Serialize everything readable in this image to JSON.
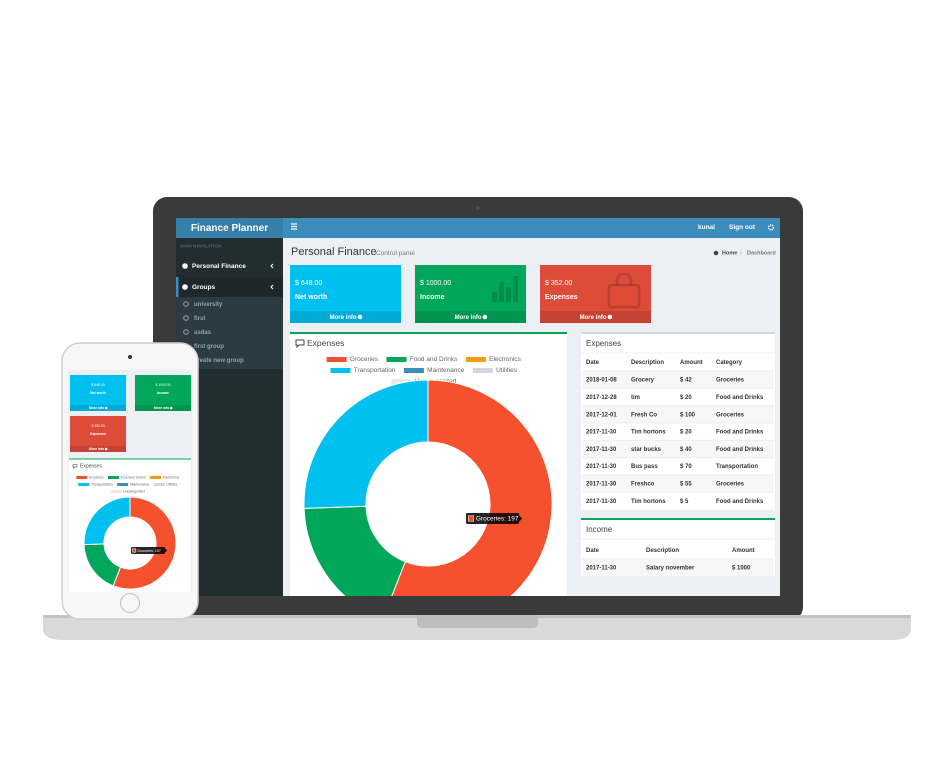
{
  "app": {
    "brand": "Finance Planner",
    "user": "kunal",
    "sign_out": "Sign out"
  },
  "sidebar": {
    "heading": "MAIN NAVIGATION",
    "items": [
      "Personal Finance",
      "Groups"
    ],
    "groups": [
      "university",
      "first",
      "asdas",
      "first group",
      "create new group"
    ]
  },
  "page": {
    "title": "Personal Finance",
    "subtitle": "Control panel",
    "breadcrumb": [
      "Home",
      "Dashboard"
    ]
  },
  "stat_boxes": [
    {
      "value": "$ 648.00",
      "label": "Net worth",
      "link": "More info",
      "color": "#00c0ef"
    },
    {
      "value": "$ 1000.00",
      "label": "Income",
      "link": "More info",
      "color": "#00a65a"
    },
    {
      "value": "$ 352.00",
      "label": "Expenses",
      "link": "More info",
      "color": "#dd4b39"
    }
  ],
  "chart_data": {
    "type": "doughnut",
    "title": "Expenses",
    "categories": [
      "Groceries",
      "Food and Drinks",
      "Electronics",
      "Transportation",
      "Maintenance",
      "Utilities",
      "Uncategorized"
    ],
    "values": [
      197,
      65,
      0,
      90,
      0,
      0,
      0
    ],
    "colors": [
      "#f5512f",
      "#00a65a",
      "#f39c12",
      "#00c0ef",
      "#3c8dbc",
      "#d2d6de",
      "#e8e8e8"
    ],
    "tooltip": "Groceries: 197"
  },
  "expenses_table": {
    "title": "Expenses",
    "columns": [
      "Date",
      "Description",
      "Amount",
      "Category"
    ],
    "rows": [
      [
        "2018-01-08",
        "Grocery",
        "$ 42",
        "Groceries"
      ],
      [
        "2017-12-28",
        "tim",
        "$ 20",
        "Food and Drinks"
      ],
      [
        "2017-12-01",
        "Fresh Co",
        "$ 100",
        "Groceries"
      ],
      [
        "2017-11-30",
        "Tim hortons",
        "$ 20",
        "Food and Drinks"
      ],
      [
        "2017-11-30",
        "star bucks",
        "$ 40",
        "Food and Drinks"
      ],
      [
        "2017-11-30",
        "Bus pass",
        "$ 70",
        "Transportation"
      ],
      [
        "2017-11-30",
        "Freshco",
        "$ 55",
        "Groceries"
      ],
      [
        "2017-11-30",
        "Tim hortons",
        "$ 5",
        "Food and Drinks"
      ]
    ]
  },
  "income_table": {
    "title": "Income",
    "columns": [
      "Date",
      "Description",
      "Amount"
    ],
    "rows": [
      [
        "2017-11-30",
        "Salary november",
        "$ 1000"
      ]
    ]
  }
}
